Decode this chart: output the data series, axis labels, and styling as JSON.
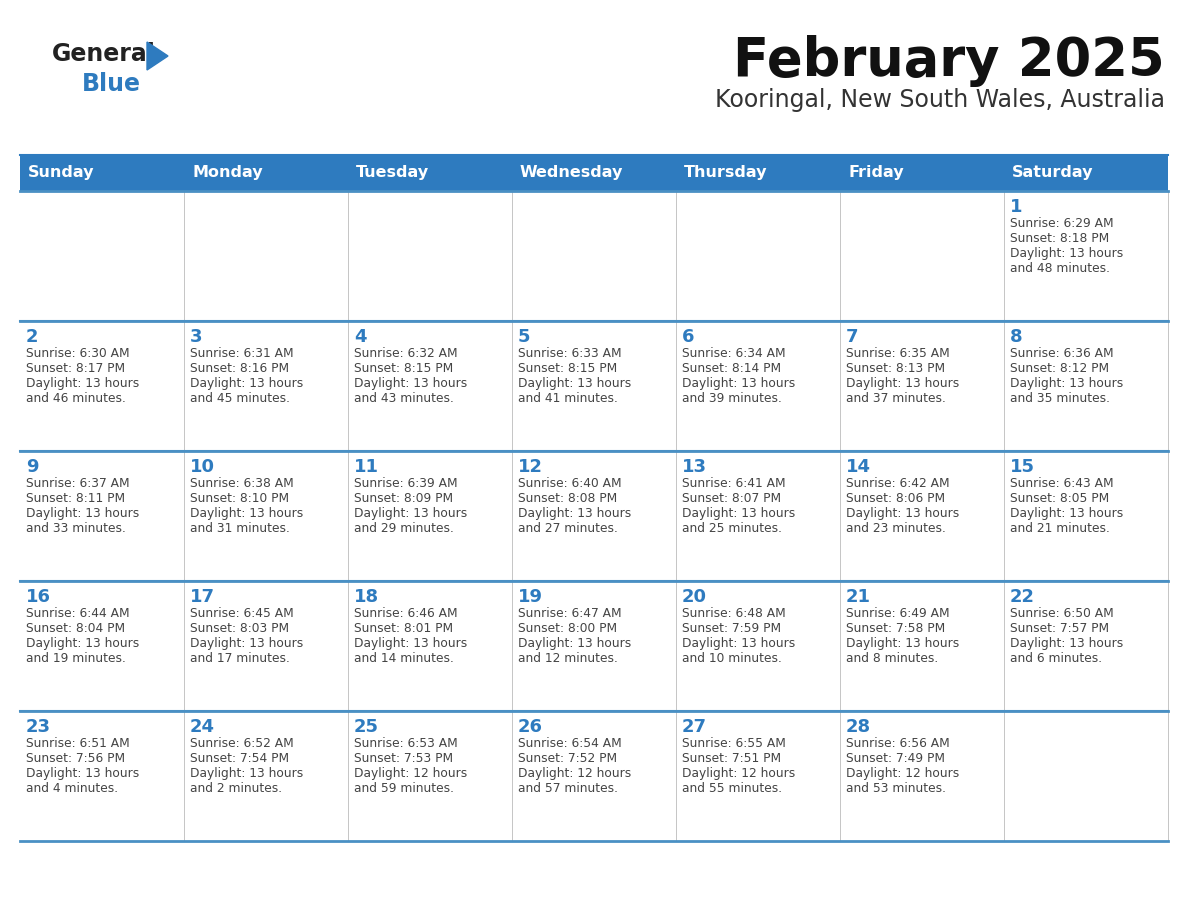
{
  "title": "February 2025",
  "subtitle": "Kooringal, New South Wales, Australia",
  "days_of_week": [
    "Sunday",
    "Monday",
    "Tuesday",
    "Wednesday",
    "Thursday",
    "Friday",
    "Saturday"
  ],
  "header_bg": "#2E7BBF",
  "header_text": "#FFFFFF",
  "border_color": "#2E7BBF",
  "row_border_color": "#4A90C4",
  "cell_border_color": "#BBBBBB",
  "text_color": "#444444",
  "day_num_color": "#2E7BBF",
  "logo_general_color": "#222222",
  "logo_blue_color": "#2E7BBF",
  "logo_triangle_color": "#2E7BBF",
  "calendar_data": [
    [
      {
        "day": null,
        "info": null
      },
      {
        "day": null,
        "info": null
      },
      {
        "day": null,
        "info": null
      },
      {
        "day": null,
        "info": null
      },
      {
        "day": null,
        "info": null
      },
      {
        "day": null,
        "info": null
      },
      {
        "day": 1,
        "info": "Sunrise: 6:29 AM\nSunset: 8:18 PM\nDaylight: 13 hours\nand 48 minutes."
      }
    ],
    [
      {
        "day": 2,
        "info": "Sunrise: 6:30 AM\nSunset: 8:17 PM\nDaylight: 13 hours\nand 46 minutes."
      },
      {
        "day": 3,
        "info": "Sunrise: 6:31 AM\nSunset: 8:16 PM\nDaylight: 13 hours\nand 45 minutes."
      },
      {
        "day": 4,
        "info": "Sunrise: 6:32 AM\nSunset: 8:15 PM\nDaylight: 13 hours\nand 43 minutes."
      },
      {
        "day": 5,
        "info": "Sunrise: 6:33 AM\nSunset: 8:15 PM\nDaylight: 13 hours\nand 41 minutes."
      },
      {
        "day": 6,
        "info": "Sunrise: 6:34 AM\nSunset: 8:14 PM\nDaylight: 13 hours\nand 39 minutes."
      },
      {
        "day": 7,
        "info": "Sunrise: 6:35 AM\nSunset: 8:13 PM\nDaylight: 13 hours\nand 37 minutes."
      },
      {
        "day": 8,
        "info": "Sunrise: 6:36 AM\nSunset: 8:12 PM\nDaylight: 13 hours\nand 35 minutes."
      }
    ],
    [
      {
        "day": 9,
        "info": "Sunrise: 6:37 AM\nSunset: 8:11 PM\nDaylight: 13 hours\nand 33 minutes."
      },
      {
        "day": 10,
        "info": "Sunrise: 6:38 AM\nSunset: 8:10 PM\nDaylight: 13 hours\nand 31 minutes."
      },
      {
        "day": 11,
        "info": "Sunrise: 6:39 AM\nSunset: 8:09 PM\nDaylight: 13 hours\nand 29 minutes."
      },
      {
        "day": 12,
        "info": "Sunrise: 6:40 AM\nSunset: 8:08 PM\nDaylight: 13 hours\nand 27 minutes."
      },
      {
        "day": 13,
        "info": "Sunrise: 6:41 AM\nSunset: 8:07 PM\nDaylight: 13 hours\nand 25 minutes."
      },
      {
        "day": 14,
        "info": "Sunrise: 6:42 AM\nSunset: 8:06 PM\nDaylight: 13 hours\nand 23 minutes."
      },
      {
        "day": 15,
        "info": "Sunrise: 6:43 AM\nSunset: 8:05 PM\nDaylight: 13 hours\nand 21 minutes."
      }
    ],
    [
      {
        "day": 16,
        "info": "Sunrise: 6:44 AM\nSunset: 8:04 PM\nDaylight: 13 hours\nand 19 minutes."
      },
      {
        "day": 17,
        "info": "Sunrise: 6:45 AM\nSunset: 8:03 PM\nDaylight: 13 hours\nand 17 minutes."
      },
      {
        "day": 18,
        "info": "Sunrise: 6:46 AM\nSunset: 8:01 PM\nDaylight: 13 hours\nand 14 minutes."
      },
      {
        "day": 19,
        "info": "Sunrise: 6:47 AM\nSunset: 8:00 PM\nDaylight: 13 hours\nand 12 minutes."
      },
      {
        "day": 20,
        "info": "Sunrise: 6:48 AM\nSunset: 7:59 PM\nDaylight: 13 hours\nand 10 minutes."
      },
      {
        "day": 21,
        "info": "Sunrise: 6:49 AM\nSunset: 7:58 PM\nDaylight: 13 hours\nand 8 minutes."
      },
      {
        "day": 22,
        "info": "Sunrise: 6:50 AM\nSunset: 7:57 PM\nDaylight: 13 hours\nand 6 minutes."
      }
    ],
    [
      {
        "day": 23,
        "info": "Sunrise: 6:51 AM\nSunset: 7:56 PM\nDaylight: 13 hours\nand 4 minutes."
      },
      {
        "day": 24,
        "info": "Sunrise: 6:52 AM\nSunset: 7:54 PM\nDaylight: 13 hours\nand 2 minutes."
      },
      {
        "day": 25,
        "info": "Sunrise: 6:53 AM\nSunset: 7:53 PM\nDaylight: 12 hours\nand 59 minutes."
      },
      {
        "day": 26,
        "info": "Sunrise: 6:54 AM\nSunset: 7:52 PM\nDaylight: 12 hours\nand 57 minutes."
      },
      {
        "day": 27,
        "info": "Sunrise: 6:55 AM\nSunset: 7:51 PM\nDaylight: 12 hours\nand 55 minutes."
      },
      {
        "day": 28,
        "info": "Sunrise: 6:56 AM\nSunset: 7:49 PM\nDaylight: 12 hours\nand 53 minutes."
      },
      {
        "day": null,
        "info": null
      }
    ]
  ]
}
